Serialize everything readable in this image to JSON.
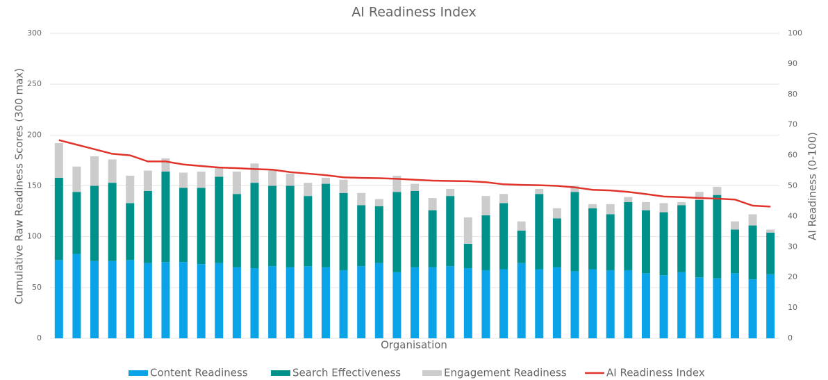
{
  "chart_data": {
    "type": "bar",
    "stacked": true,
    "title": "AI Readiness Index",
    "xlabel": "Organisation",
    "ylabel": "Cumulative Raw Readiness Scores (300 max)",
    "y2label": "AI Readiness (0-100)",
    "categories": [
      null,
      null,
      null,
      null,
      null,
      null,
      null,
      null,
      null,
      null,
      null,
      null,
      null,
      null,
      null,
      null,
      null,
      null,
      null,
      null,
      null,
      null,
      null,
      null,
      null,
      null,
      null,
      null,
      null,
      null,
      null,
      null,
      null,
      null,
      null,
      null,
      null,
      null,
      null,
      null,
      null
    ],
    "series": [
      {
        "name": "Content Readiness",
        "color": "#0aa3e8",
        "values": [
          77,
          83,
          76,
          76,
          77,
          74,
          75,
          75,
          73,
          74,
          70,
          69,
          71,
          70,
          71,
          70,
          67,
          71,
          74,
          65,
          70,
          70,
          71,
          69,
          67,
          68,
          74,
          68,
          70,
          66,
          68,
          67,
          67,
          64,
          62,
          65,
          60,
          59,
          64,
          58,
          63
        ]
      },
      {
        "name": "Search Effectiveness",
        "color": "#00918a",
        "values": [
          81,
          61,
          74,
          77,
          56,
          71,
          89,
          73,
          75,
          85,
          72,
          84,
          79,
          80,
          69,
          82,
          76,
          60,
          56,
          79,
          75,
          56,
          69,
          24,
          54,
          65,
          32,
          74,
          48,
          78,
          60,
          55,
          67,
          62,
          62,
          66,
          76,
          82,
          43,
          53,
          41
        ]
      },
      {
        "name": "Engagement Readiness",
        "color": "#cccccc",
        "values": [
          34,
          25,
          29,
          23,
          27,
          20,
          13,
          15,
          16,
          9,
          22,
          19,
          15,
          12,
          13,
          6,
          13,
          12,
          7,
          16,
          7,
          12,
          7,
          26,
          19,
          9,
          9,
          5,
          10,
          6,
          4,
          10,
          5,
          8,
          9,
          3,
          8,
          8,
          8,
          11,
          3
        ]
      },
      {
        "name": "AI Readiness Index",
        "color": "#e0342b",
        "type": "line",
        "axis": "y2",
        "values": [
          65,
          63.5,
          62,
          60.5,
          60,
          58,
          58,
          57,
          56.5,
          56,
          55.8,
          55.5,
          55.3,
          54.5,
          54,
          53.5,
          52.8,
          52.6,
          52.5,
          52.3,
          52,
          51.7,
          51.6,
          51.5,
          51.2,
          50.5,
          50.3,
          50.2,
          50,
          49.5,
          48.7,
          48.5,
          48,
          47.3,
          46.5,
          46.3,
          46,
          45.8,
          45.5,
          43.5,
          43.2
        ]
      }
    ],
    "ylim": [
      0,
      300
    ],
    "yticks": [
      0,
      50,
      100,
      150,
      200,
      250,
      300
    ],
    "y2lim": [
      0,
      100
    ],
    "y2ticks": [
      0,
      10,
      20,
      30,
      40,
      50,
      60,
      70,
      80,
      90,
      100
    ],
    "grid": true,
    "legend": "bottom"
  }
}
